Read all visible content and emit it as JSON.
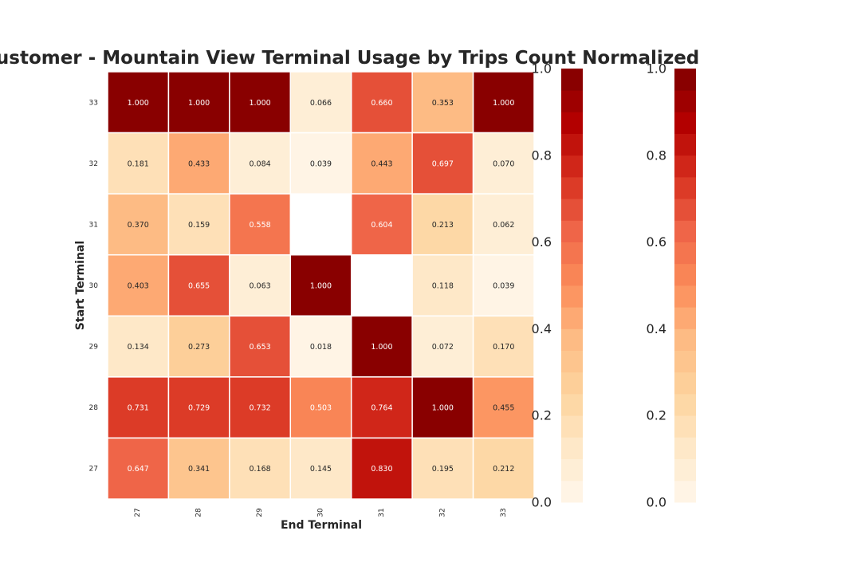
{
  "chart_data": {
    "type": "heatmap",
    "title": "Customer - Mountain View Terminal Usage by Trips Count Normalized",
    "xlabel": "End Terminal",
    "ylabel": "Start Terminal",
    "x_categories": [
      "27",
      "28",
      "29",
      "30",
      "31",
      "32",
      "33"
    ],
    "y_categories": [
      "33",
      "32",
      "31",
      "30",
      "29",
      "28",
      "27"
    ],
    "values": [
      [
        1.0,
        1.0,
        1.0,
        0.066,
        0.66,
        0.353,
        1.0
      ],
      [
        0.181,
        0.433,
        0.084,
        0.039,
        0.443,
        0.697,
        0.07
      ],
      [
        0.37,
        0.159,
        0.558,
        null,
        0.604,
        0.213,
        0.062
      ],
      [
        0.403,
        0.655,
        0.063,
        1.0,
        null,
        0.118,
        0.039
      ],
      [
        0.134,
        0.273,
        0.653,
        0.018,
        1.0,
        0.072,
        0.17
      ],
      [
        0.731,
        0.729,
        0.732,
        0.503,
        0.764,
        1.0,
        0.455
      ],
      [
        0.647,
        0.341,
        0.168,
        0.145,
        0.83,
        0.195,
        0.212
      ]
    ],
    "value_format": "0.000",
    "colormap": "OrRd",
    "color_steps": 20,
    "vmin": 0,
    "vmax": 1,
    "colorbars": [
      {
        "ticks": [
          "0.0",
          "0.2",
          "0.4",
          "0.6",
          "0.8",
          "1.0"
        ]
      },
      {
        "ticks": [
          "0.0",
          "0.2",
          "0.4",
          "0.6",
          "0.8",
          "1.0"
        ]
      }
    ],
    "grid": false
  }
}
